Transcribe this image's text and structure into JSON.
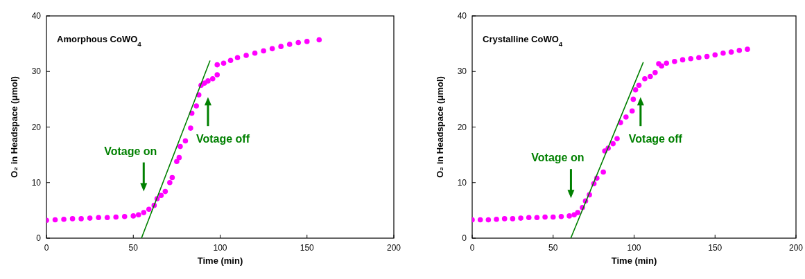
{
  "chart_data": [
    {
      "type": "scatter",
      "title": "Amorphous CoWO$_{4}$",
      "xlabel": "Time (min)",
      "ylabel": "O₂ in Headspace (μmol)",
      "xlim": [
        0,
        200
      ],
      "xticks": [
        0,
        50,
        100,
        150,
        200
      ],
      "ylim": [
        0,
        40
      ],
      "yticks": [
        0,
        10,
        20,
        30,
        40
      ],
      "series": [
        {
          "marker": "circle",
          "color": "#ff00ff",
          "x": [
            0,
            5,
            10,
            15,
            20,
            25,
            30,
            35,
            40,
            45,
            50,
            53,
            56,
            59,
            62,
            63.7,
            66,
            68.4,
            71,
            72.4,
            75,
            76.4,
            77,
            80,
            83,
            83.7,
            86.3,
            87.7,
            89,
            91,
            93,
            95.7,
            98.3,
            98.3,
            102,
            106,
            110,
            115,
            120,
            125,
            130,
            135,
            140,
            145,
            150,
            157
          ],
          "values": [
            3.2,
            3.3,
            3.4,
            3.5,
            3.5,
            3.6,
            3.7,
            3.7,
            3.8,
            3.9,
            4.0,
            4.2,
            4.6,
            5.2,
            5.9,
            7.1,
            7.7,
            8.4,
            10.0,
            10.9,
            13.8,
            14.5,
            16.5,
            17.5,
            19.8,
            22.5,
            23.8,
            25.8,
            27.5,
            27.9,
            28.3,
            28.7,
            29.4,
            31.2,
            31.5,
            32.0,
            32.5,
            32.9,
            33.3,
            33.7,
            34.1,
            34.5,
            34.9,
            35.2,
            35.4,
            35.7
          ]
        },
        {
          "type": "line",
          "marker": "none",
          "color": "#008000",
          "x": [
            54.7,
            94.1
          ],
          "values": [
            0,
            31.9
          ]
        }
      ],
      "annotations": [
        "Votage on",
        "Votage off"
      ]
    },
    {
      "type": "scatter",
      "title": "Crystalline CoWO$_{4}$",
      "xlabel": "Time (min)",
      "ylabel": "O₂ in Headspace (μmol)",
      "xlim": [
        0,
        200
      ],
      "xticks": [
        0,
        50,
        100,
        150,
        200
      ],
      "ylim": [
        0,
        40
      ],
      "yticks": [
        0,
        10,
        20,
        30,
        40
      ],
      "series": [
        {
          "marker": "circle",
          "color": "#ff00ff",
          "x": [
            0,
            5,
            10,
            15,
            20,
            25,
            30,
            35,
            40,
            45,
            50,
            55,
            60,
            63,
            65.2,
            68.1,
            70,
            72.4,
            75.2,
            77,
            81,
            81.9,
            84,
            87,
            89.5,
            91.6,
            95,
            98.8,
            99.5,
            100.9,
            103,
            106.6,
            110,
            113,
            115.2,
            117,
            120,
            125,
            130,
            135,
            140,
            145,
            150,
            155,
            160,
            165,
            170
          ],
          "values": [
            3.3,
            3.3,
            3.3,
            3.4,
            3.5,
            3.5,
            3.6,
            3.7,
            3.7,
            3.8,
            3.8,
            3.9,
            4.0,
            4.2,
            4.6,
            5.5,
            6.7,
            7.8,
            9.8,
            10.8,
            11.9,
            15.7,
            16.2,
            17.0,
            17.9,
            20.8,
            21.8,
            22.9,
            25.0,
            26.7,
            27.5,
            28.7,
            29.1,
            29.8,
            31.4,
            31.0,
            31.5,
            31.8,
            32.1,
            32.3,
            32.5,
            32.7,
            33.0,
            33.3,
            33.5,
            33.8,
            34.0
          ]
        },
        {
          "type": "line",
          "marker": "none",
          "color": "#008000",
          "x": [
            60.9,
            105.6
          ],
          "values": [
            0,
            31.6
          ]
        }
      ],
      "annotations": [
        "Votage on",
        "Votage off"
      ]
    }
  ]
}
